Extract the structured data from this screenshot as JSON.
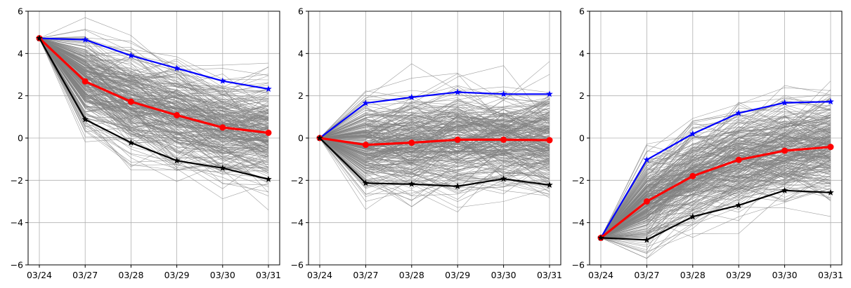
{
  "chart_data": [
    {
      "type": "line",
      "x": [
        "03/24",
        "03/27",
        "03/28",
        "03/29",
        "03/30",
        "03/31"
      ],
      "ylim": [
        -6,
        6
      ],
      "yticks": [
        -6,
        -4,
        -2,
        0,
        2,
        4,
        6
      ],
      "grid": true,
      "series": [
        {
          "role": "upper",
          "color": "#0000ff",
          "marker": "star",
          "values": [
            4.72,
            4.65,
            3.9,
            3.3,
            2.7,
            2.32
          ]
        },
        {
          "role": "mean",
          "color": "#ff0000",
          "marker": "circle",
          "values": [
            4.72,
            2.68,
            1.72,
            1.08,
            0.5,
            0.25
          ]
        },
        {
          "role": "lower",
          "color": "#000000",
          "marker": "star",
          "values": [
            4.72,
            0.88,
            -0.22,
            -1.07,
            -1.42,
            -1.95
          ]
        }
      ],
      "ensemble": {
        "color": "#808080",
        "count": 260,
        "spread": [
          0,
          1.0,
          1.0,
          1.1,
          1.1,
          1.15
        ]
      }
    },
    {
      "type": "line",
      "x": [
        "03/24",
        "03/27",
        "03/28",
        "03/29",
        "03/30",
        "03/31"
      ],
      "ylim": [
        -6,
        6
      ],
      "yticks": [
        -6,
        -4,
        -2,
        0,
        2,
        4,
        6
      ],
      "grid": true,
      "series": [
        {
          "role": "upper",
          "color": "#0000ff",
          "marker": "star",
          "values": [
            0.0,
            1.65,
            1.93,
            2.17,
            2.08,
            2.08
          ]
        },
        {
          "role": "mean",
          "color": "#ff0000",
          "marker": "circle",
          "values": [
            0.0,
            -0.32,
            -0.22,
            -0.08,
            -0.08,
            -0.1
          ]
        },
        {
          "role": "lower",
          "color": "#000000",
          "marker": "star",
          "values": [
            0.0,
            -2.13,
            -2.18,
            -2.28,
            -1.93,
            -2.22
          ]
        }
      ],
      "ensemble": {
        "color": "#808080",
        "count": 260,
        "spread": [
          0,
          1.15,
          1.2,
          1.2,
          1.15,
          1.2
        ]
      }
    },
    {
      "type": "line",
      "x": [
        "03/24",
        "03/27",
        "03/28",
        "03/29",
        "03/30",
        "03/31"
      ],
      "ylim": [
        -6,
        6
      ],
      "yticks": [
        -6,
        -4,
        -2,
        0,
        2,
        4,
        6
      ],
      "grid": true,
      "series": [
        {
          "role": "upper",
          "color": "#0000ff",
          "marker": "star",
          "values": [
            -4.72,
            -1.03,
            0.2,
            1.18,
            1.67,
            1.72
          ]
        },
        {
          "role": "mean",
          "color": "#ff0000",
          "marker": "circle",
          "values": [
            -4.72,
            -3.0,
            -1.8,
            -1.03,
            -0.6,
            -0.42
          ]
        },
        {
          "role": "lower",
          "color": "#000000",
          "marker": "star",
          "values": [
            -4.72,
            -4.82,
            -3.72,
            -3.18,
            -2.48,
            -2.58
          ]
        }
      ],
      "ensemble": {
        "color": "#808080",
        "count": 260,
        "spread": [
          0,
          1.1,
          1.2,
          1.2,
          1.1,
          1.15
        ]
      }
    }
  ]
}
